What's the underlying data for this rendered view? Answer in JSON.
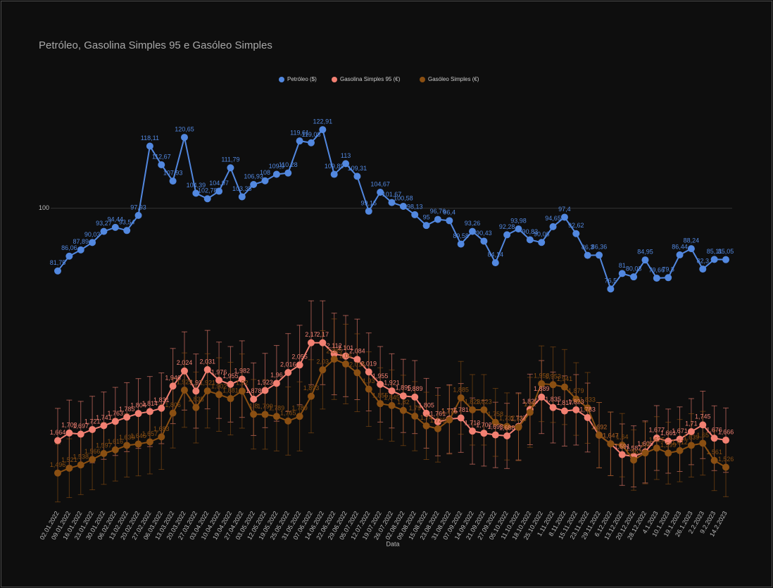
{
  "chart_data": {
    "type": "line",
    "title": "Petróleo, Gasolina Simples 95 e Gasóleo Simples",
    "x_label": "Data",
    "categories": [
      "02.01.2022",
      "09.01.2022",
      "16.01.2022",
      "23.01.2022",
      "30.01.2022",
      "06.02.2022",
      "13.02.2022",
      "20.02.2022",
      "27.02.2022",
      "06.03.2022",
      "13.03.2022",
      "20.03.2022",
      "27.03.2022",
      "03.04.2022",
      "10.04.2022",
      "19.04.2022",
      "27.04.2022",
      "03.05.2022",
      "12.05.2022",
      "19.05.2022",
      "25.05.2022",
      "31.05.2022",
      "07.06.2022",
      "14.06.2022",
      "22.06.2022",
      "29.06.2022",
      "05.07.2022",
      "12.07.2022",
      "19.07.2022",
      "26.07.2022",
      "02.08.2022",
      "09.08.2022",
      "15.08.2022",
      "23.08.2022",
      "31.08.2022",
      "07.09.2022",
      "14.09.2022",
      "21.09.2022",
      "27.09.2022",
      "05.10.2022",
      "11.10.2022",
      "18.10.2022",
      "25.10.2022",
      "1.11.2022",
      "8.11.2022",
      "15.11.2022",
      "23.11.2022",
      "29.11.2022",
      "6.12.2022",
      "13.12.2022",
      "20.12.2022",
      "28.12.2022",
      "4.1.2023",
      "10.1.2023",
      "19.1.2023",
      "26.1.2023",
      "2.2.2023",
      "9.2.2023",
      "14.2.2023"
    ],
    "ylim": [
      13,
      134
    ],
    "yticks": [
      100
    ],
    "y2lim": [
      1.32,
      3.47
    ],
    "grid": true,
    "legend": "top",
    "series": [
      {
        "name": "Petróleo ($)",
        "color": "#5288e0",
        "values": [
          81.75,
          86.06,
          87.89,
          90.03,
          93.27,
          94.44,
          93.54,
          97.93,
          118.11,
          112.67,
          107.93,
          120.65,
          104.39,
          102.78,
          104.97,
          111.79,
          103.35,
          106.93,
          108,
          109.9,
          110.28,
          119.61,
          119.08,
          122.91,
          109.89,
          113,
          109.31,
          99.15,
          104.67,
          101.67,
          100.58,
          98.13,
          95,
          96.76,
          96.4,
          89.58,
          93.26,
          90.43,
          84.14,
          92.28,
          93.98,
          90.83,
          90.06,
          94.65,
          97.4,
          92.62,
          86.3,
          86.36,
          76.5,
          81,
          80.03,
          84.95,
          79.66,
          79.8,
          86.44,
          88.24,
          82.3,
          85.11,
          85.05
        ],
        "value_labels": [
          "81,75",
          "86,06",
          "87,89",
          "90,03",
          "93,27",
          "94,44",
          "93,54",
          "97,93",
          "118,11",
          "112,67",
          "107,93",
          "120,65",
          "104,39",
          "102,78",
          "104,97",
          "111,79",
          "103,35",
          "106,93",
          "108",
          "109,9",
          "110,28",
          "119,61",
          "119,08",
          "122,91",
          "109,89",
          "113",
          "109,31",
          "99,15",
          "104,67",
          "101,67",
          "100,58",
          "98,13",
          "95",
          "96,76",
          "96,4",
          "89,58",
          "93,26",
          "90,43",
          "84,14",
          "92,28",
          "93,98",
          "90,83",
          "90,06",
          "94,65",
          "97,4",
          "92,62",
          "86,3",
          "86,36",
          "76,5",
          "81",
          "80,03",
          "84,95",
          "79,66",
          "79,8",
          "86,44",
          "88,24",
          "82,3",
          "85,11",
          "85,05"
        ]
      },
      {
        "name": "Gasolina Simples 95 (€)",
        "color": "#f28072",
        "axis": "y2",
        "error_percent": 10,
        "values": [
          1.664,
          1.703,
          1.697,
          1.721,
          1.741,
          1.763,
          1.785,
          1.804,
          1.814,
          1.831,
          1.946,
          2.024,
          1.92,
          2.031,
          1.976,
          1.955,
          1.982,
          1.878,
          1.923,
          1.96,
          2.016,
          2.055,
          2.17,
          2.17,
          2.112,
          2.101,
          2.084,
          2.019,
          1.955,
          1.921,
          1.895,
          1.889,
          1.805,
          1.761,
          1.775,
          1.781,
          1.713,
          1.702,
          1.693,
          1.688,
          1.737,
          1.825,
          1.889,
          1.835,
          1.817,
          1.823,
          1.783,
          1.692,
          1.647,
          1.591,
          1.582,
          1.605,
          1.677,
          1.661,
          1.671,
          1.71,
          1.745,
          1.676,
          1.666
        ],
        "value_labels": [
          "1,664",
          "1,703",
          "1,697",
          "1,721",
          "1,741",
          "1,763",
          "1,785",
          "1,804",
          "1,814",
          "1,831",
          "1,946",
          "2,024",
          "1,92",
          "2,031",
          "1,976",
          "1,955",
          "1,982",
          "1,878",
          "1,923",
          "1,96",
          "2,016",
          "2,055",
          "2,17",
          "2,17",
          "2,112",
          "2,101",
          "2,084",
          "2,019",
          "1,955",
          "1,921",
          "1,895",
          "1,889",
          "1,805",
          "1,761",
          "1,775",
          "1,781",
          "1,713",
          "1,702",
          "1,693",
          "1,688",
          "1,737",
          "1,825",
          "1,889",
          "1,835",
          "1,817",
          "1,823",
          "1,783",
          "1,692",
          "1,647",
          "1,591",
          "1,582",
          "1,605",
          "1,677",
          "1,661",
          "1,671",
          "1,71",
          "1,745",
          "1,676",
          "1,666"
        ]
      },
      {
        "name": "Gasóleo Simples (€)",
        "color": "#8a4f12",
        "axis": "y2",
        "error_percent": 10,
        "values": [
          1.496,
          1.521,
          1.538,
          1.566,
          1.597,
          1.616,
          1.639,
          1.646,
          1.657,
          1.683,
          1.806,
          1.925,
          1.835,
          1.921,
          1.902,
          1.881,
          1.92,
          1.8,
          1.799,
          1.789,
          1.765,
          1.789,
          1.893,
          2.03,
          2.085,
          2.06,
          2.015,
          1.93,
          1.855,
          1.845,
          1.82,
          1.79,
          1.74,
          1.725,
          1.771,
          1.885,
          1.823,
          1.823,
          1.758,
          1.737,
          1.733,
          1.81,
          1.958,
          1.953,
          1.941,
          1.879,
          1.833,
          1.692,
          1.647,
          1.64,
          1.563,
          1.6,
          1.625,
          1.599,
          1.612,
          1.639,
          1.65,
          1.561,
          1.526
        ],
        "value_labels": [
          "1,496",
          "1,521",
          "1,538",
          "1,566",
          "1,597",
          "1,616",
          "1,639",
          "1,646",
          "1,657",
          "1,683",
          "1,806",
          "1,925",
          "1,835",
          "1,921",
          "1,902",
          "1,881",
          "1,92",
          "1,8",
          "1,799",
          "1,789",
          "1,765",
          "1,789",
          "1,893",
          "2,03",
          "2,085",
          "2,06",
          "2,015",
          "1,93",
          "1,855",
          "1,845",
          "1,82",
          "1,79",
          "1,74",
          "1,725",
          "1,771",
          "1,885",
          "1,823",
          "1,823",
          "1,758",
          "1,737",
          "1,733",
          "1,81",
          "1,958",
          "1,953",
          "1,941",
          "1,879",
          "1,833",
          "1,692",
          "1,647",
          "1,64",
          "1,563",
          "1,6",
          "1,625",
          "1,599",
          "1,612",
          "1,639",
          "1,65",
          "1,561",
          "1,526"
        ]
      }
    ]
  }
}
